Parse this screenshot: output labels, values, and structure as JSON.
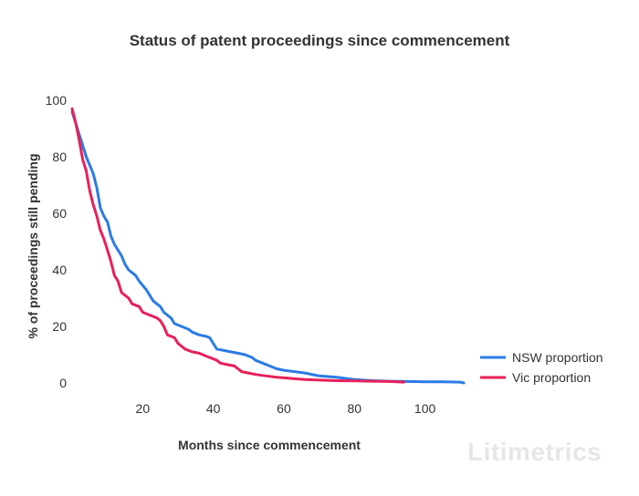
{
  "chart_data": {
    "type": "line",
    "title": "Status of patent proceedings since commencement",
    "xlabel": "Months since commencement",
    "ylabel": "% of proceedings still pending",
    "xlim": [
      0,
      112
    ],
    "ylim": [
      0,
      100
    ],
    "xticks": [
      20,
      40,
      60,
      80,
      100
    ],
    "yticks": [
      0,
      20,
      40,
      60,
      80,
      100
    ],
    "grid": false,
    "legend_position": "right",
    "series": [
      {
        "name": "NSW proportion",
        "color": "#2b7be4",
        "points": [
          [
            0,
            96
          ],
          [
            2,
            88
          ],
          [
            4,
            80
          ],
          [
            6,
            74
          ],
          [
            7,
            69
          ],
          [
            8,
            62
          ],
          [
            9,
            59
          ],
          [
            10,
            57
          ],
          [
            11,
            52
          ],
          [
            12,
            49
          ],
          [
            13,
            47
          ],
          [
            14,
            45
          ],
          [
            15,
            42
          ],
          [
            16,
            40
          ],
          [
            18,
            38
          ],
          [
            19,
            36
          ],
          [
            21,
            33
          ],
          [
            22,
            31
          ],
          [
            23,
            29
          ],
          [
            25,
            27
          ],
          [
            26,
            25
          ],
          [
            28,
            23
          ],
          [
            29,
            21
          ],
          [
            31,
            20
          ],
          [
            33,
            19
          ],
          [
            34,
            18
          ],
          [
            36,
            17
          ],
          [
            38,
            16.5
          ],
          [
            39,
            16
          ],
          [
            40,
            14
          ],
          [
            41,
            12
          ],
          [
            43,
            11.5
          ],
          [
            45,
            11
          ],
          [
            47,
            10.5
          ],
          [
            49,
            10
          ],
          [
            51,
            9
          ],
          [
            52,
            8
          ],
          [
            54,
            7
          ],
          [
            56,
            6
          ],
          [
            58,
            5
          ],
          [
            60,
            4.5
          ],
          [
            63,
            4
          ],
          [
            66,
            3.5
          ],
          [
            70,
            2.5
          ],
          [
            75,
            2
          ],
          [
            80,
            1.2
          ],
          [
            85,
            0.8
          ],
          [
            90,
            0.6
          ],
          [
            95,
            0.5
          ],
          [
            100,
            0.4
          ],
          [
            105,
            0.4
          ],
          [
            110,
            0.3
          ],
          [
            111,
            0
          ]
        ]
      },
      {
        "name": "Vic proportion",
        "color": "#e8205a",
        "points": [
          [
            0,
            97
          ],
          [
            1,
            92
          ],
          [
            2,
            86
          ],
          [
            3,
            79
          ],
          [
            4,
            75
          ],
          [
            5,
            68
          ],
          [
            6,
            63
          ],
          [
            7,
            59
          ],
          [
            8,
            54
          ],
          [
            9,
            51
          ],
          [
            10,
            47
          ],
          [
            11,
            43
          ],
          [
            12,
            38
          ],
          [
            13,
            36
          ],
          [
            14,
            32
          ],
          [
            15,
            31
          ],
          [
            16,
            30
          ],
          [
            17,
            28
          ],
          [
            19,
            27
          ],
          [
            20,
            25
          ],
          [
            22,
            24
          ],
          [
            24,
            23
          ],
          [
            25,
            22
          ],
          [
            26,
            20
          ],
          [
            27,
            17
          ],
          [
            29,
            16
          ],
          [
            30,
            14
          ],
          [
            31,
            13
          ],
          [
            32,
            12
          ],
          [
            34,
            11
          ],
          [
            36,
            10.5
          ],
          [
            38,
            9.5
          ],
          [
            39,
            9
          ],
          [
            40,
            8.5
          ],
          [
            41,
            8
          ],
          [
            42,
            7
          ],
          [
            44,
            6.5
          ],
          [
            46,
            6
          ],
          [
            47,
            5
          ],
          [
            48,
            4
          ],
          [
            50,
            3.5
          ],
          [
            52,
            3
          ],
          [
            55,
            2.5
          ],
          [
            58,
            2
          ],
          [
            60,
            1.8
          ],
          [
            63,
            1.5
          ],
          [
            66,
            1.2
          ],
          [
            70,
            1
          ],
          [
            75,
            0.8
          ],
          [
            80,
            0.7
          ],
          [
            85,
            0.6
          ],
          [
            90,
            0.5
          ],
          [
            94,
            0.3
          ]
        ]
      }
    ]
  },
  "watermark": "Litimetrics"
}
